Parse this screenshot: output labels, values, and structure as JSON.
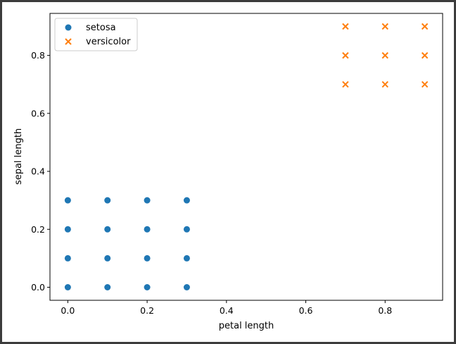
{
  "chart_data": {
    "type": "scatter",
    "xlabel": "petal length",
    "ylabel": "sepal length",
    "xlim": [
      -0.045,
      0.945
    ],
    "ylim": [
      -0.045,
      0.945
    ],
    "xticks": [
      0.0,
      0.2,
      0.4,
      0.6,
      0.8
    ],
    "yticks": [
      0.0,
      0.2,
      0.4,
      0.6,
      0.8
    ],
    "xtick_labels": [
      "0.0",
      "0.2",
      "0.4",
      "0.6",
      "0.8"
    ],
    "ytick_labels": [
      "0.0",
      "0.2",
      "0.4",
      "0.6",
      "0.8"
    ],
    "grid": false,
    "legend_position": "top-left",
    "series": [
      {
        "name": "setosa",
        "marker": "circle",
        "color": "#1f77b4",
        "points": [
          [
            0.0,
            0.0
          ],
          [
            0.1,
            0.0
          ],
          [
            0.2,
            0.0
          ],
          [
            0.3,
            0.0
          ],
          [
            0.0,
            0.1
          ],
          [
            0.1,
            0.1
          ],
          [
            0.2,
            0.1
          ],
          [
            0.3,
            0.1
          ],
          [
            0.0,
            0.2
          ],
          [
            0.1,
            0.2
          ],
          [
            0.2,
            0.2
          ],
          [
            0.3,
            0.2
          ],
          [
            0.0,
            0.3
          ],
          [
            0.1,
            0.3
          ],
          [
            0.2,
            0.3
          ],
          [
            0.3,
            0.3
          ]
        ]
      },
      {
        "name": "versicolor",
        "marker": "x",
        "color": "#ff7f0e",
        "points": [
          [
            0.7,
            0.7
          ],
          [
            0.8,
            0.7
          ],
          [
            0.9,
            0.7
          ],
          [
            0.7,
            0.8
          ],
          [
            0.8,
            0.8
          ],
          [
            0.9,
            0.8
          ],
          [
            0.7,
            0.9
          ],
          [
            0.8,
            0.9
          ],
          [
            0.9,
            0.9
          ]
        ]
      }
    ]
  }
}
